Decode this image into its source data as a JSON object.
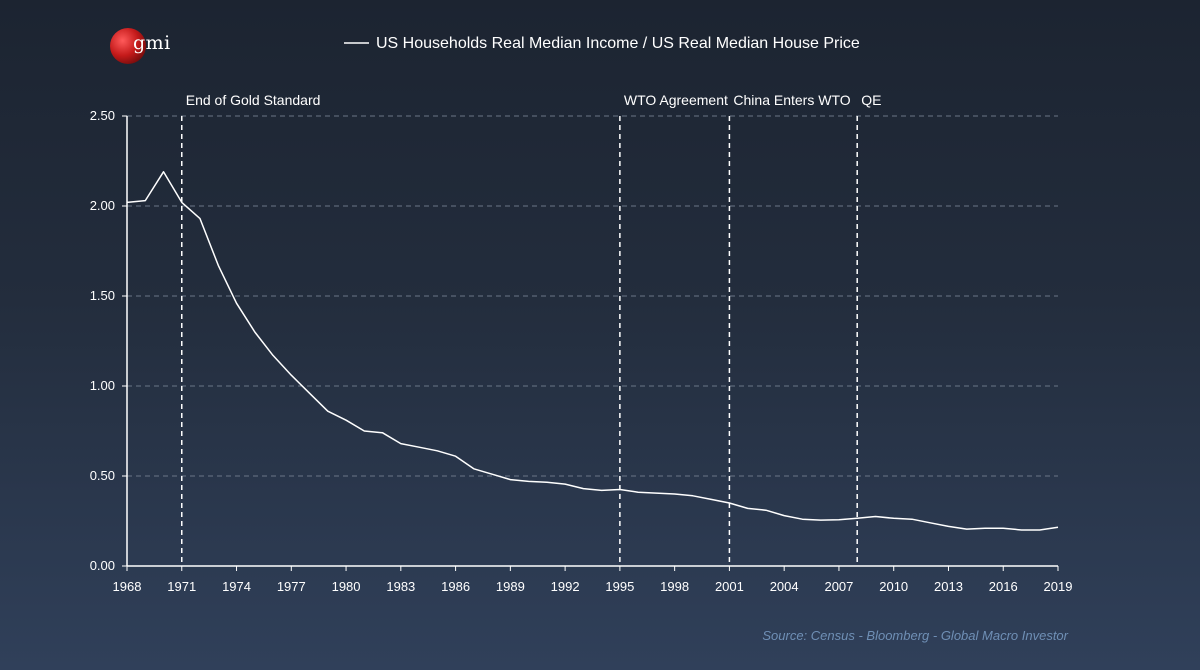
{
  "logo": {
    "text": "gmi"
  },
  "chart_data": {
    "type": "line",
    "series": [
      {
        "name": "US Households Real Median Income / US Real Median House Price",
        "x": [
          1968,
          1969,
          1970,
          1971,
          1972,
          1973,
          1974,
          1975,
          1976,
          1977,
          1978,
          1979,
          1980,
          1981,
          1982,
          1983,
          1984,
          1985,
          1986,
          1987,
          1988,
          1989,
          1990,
          1991,
          1992,
          1993,
          1994,
          1995,
          1996,
          1997,
          1998,
          1999,
          2000,
          2001,
          2002,
          2003,
          2004,
          2005,
          2006,
          2007,
          2008,
          2009,
          2010,
          2011,
          2012,
          2013,
          2014,
          2015,
          2016,
          2017,
          2018,
          2019
        ],
        "values": [
          2.02,
          2.03,
          2.19,
          2.02,
          1.93,
          1.67,
          1.46,
          1.3,
          1.17,
          1.06,
          0.96,
          0.86,
          0.81,
          0.75,
          0.74,
          0.68,
          0.66,
          0.64,
          0.61,
          0.54,
          0.51,
          0.48,
          0.47,
          0.465,
          0.455,
          0.43,
          0.42,
          0.425,
          0.41,
          0.405,
          0.4,
          0.39,
          0.37,
          0.35,
          0.32,
          0.31,
          0.28,
          0.26,
          0.255,
          0.257,
          0.265,
          0.275,
          0.265,
          0.26,
          0.24,
          0.22,
          0.205,
          0.21,
          0.21,
          0.2,
          0.2,
          0.215
        ]
      }
    ],
    "events": [
      {
        "x": 1971,
        "label": "End of Gold Standard"
      },
      {
        "x": 1995,
        "label": "WTO Agreement"
      },
      {
        "x": 2001,
        "label": "China Enters WTO"
      },
      {
        "x": 2008,
        "label": "QE"
      }
    ],
    "x_ticks": [
      1968,
      1971,
      1974,
      1977,
      1980,
      1983,
      1986,
      1989,
      1992,
      1995,
      1998,
      2001,
      2004,
      2007,
      2010,
      2013,
      2016,
      2019
    ],
    "y_ticks": [
      "0.00",
      "0.50",
      "1.00",
      "1.50",
      "2.00",
      "2.50"
    ],
    "xlim": [
      1968,
      2019
    ],
    "ylim": [
      0,
      2.5
    ],
    "grid": true,
    "legend_position": "top-center",
    "source": "Source: Census - Bloomberg - Global Macro Investor",
    "colors": {
      "line": "#ffffff",
      "grid": "#6b7687",
      "source": "#6f8fb5"
    }
  }
}
